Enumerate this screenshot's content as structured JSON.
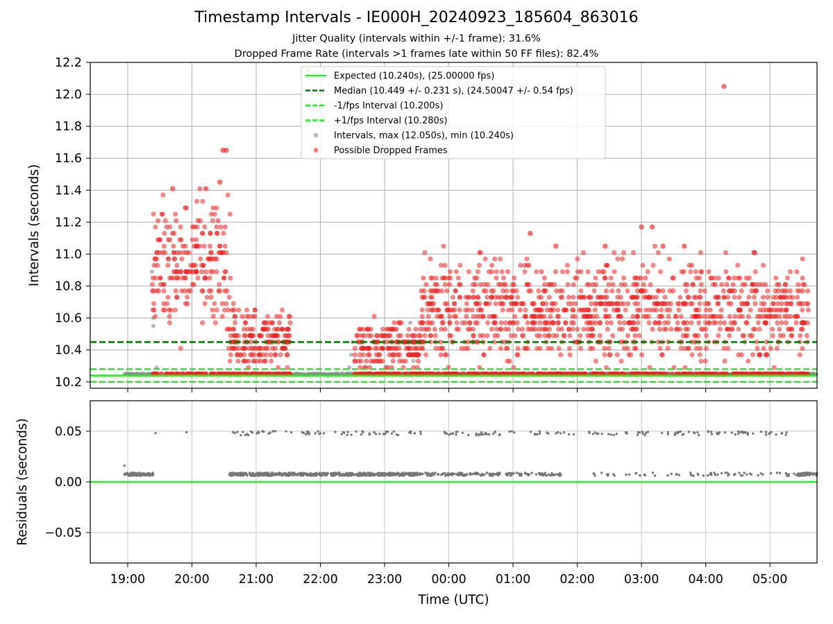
{
  "chart_data": [
    {
      "type": "scatter",
      "title": "Timestamp Intervals - IE000H_20240923_185604_863016",
      "subtitle_1": "Jitter Quality (intervals within +/-1 frame): 31.6%",
      "subtitle_2": "Dropped Frame Rate (intervals >1 frames late within 50 FF files): 82.4%",
      "ylabel": "Intervals (seconds)",
      "xlim": [
        "18:25",
        "05:44"
      ],
      "ylim": [
        10.16,
        12.2
      ],
      "yticks": [
        "10.2",
        "10.4",
        "10.6",
        "10.8",
        "11.0",
        "11.2",
        "11.4",
        "11.6",
        "11.8",
        "12.0",
        "12.2"
      ],
      "grid": true,
      "legend_position": "top-center",
      "reference_lines": [
        {
          "name": "Expected (10.240s), (25.00000 fps)",
          "y": 10.24,
          "style": "solid",
          "color": "#22ee22"
        },
        {
          "name": "Median (10.449 +/- 0.231 s), (24.50047 +/- 0.54 fps)",
          "y": 10.449,
          "style": "dashed",
          "color": "#007700"
        },
        {
          "name": "-1/fps Interval (10.200s)",
          "y": 10.2,
          "style": "dashed",
          "color": "#22ee22"
        },
        {
          "name": "+1/fps Interval (10.280s)",
          "y": 10.28,
          "style": "dashed",
          "color": "#22ee22"
        }
      ],
      "series": [
        {
          "name": "Intervals, max (12.050s), min (10.240s)",
          "color": "#888888",
          "segments": [
            {
              "start": "18:57",
              "end": "19:25",
              "base": 10.248
            },
            {
              "start": "20:34",
              "end": "21:34",
              "base": 10.248
            },
            {
              "start": "21:34",
              "end": "22:32",
              "base": 10.248
            },
            {
              "start": "22:32",
              "end": "23:35",
              "base": 10.248
            },
            {
              "start": "23:35",
              "end": "05:44",
              "base": 10.248
            }
          ]
        },
        {
          "name": "Possible Dropped Frames",
          "color": "#ff2020",
          "clusters": [
            {
              "start": "19:23",
              "end": "20:00",
              "min": 10.26,
              "max": 11.41,
              "center": 10.98
            },
            {
              "start": "20:00",
              "end": "20:36",
              "min": 10.4,
              "max": 11.45,
              "center": 10.95
            },
            {
              "start": "20:34",
              "end": "21:32",
              "min": 10.25,
              "max": 10.81,
              "center": 10.42
            },
            {
              "start": "22:32",
              "end": "23:34",
              "min": 10.25,
              "max": 10.68,
              "center": 10.4
            },
            {
              "start": "23:34",
              "end": "05:36",
              "min": 10.25,
              "max": 11.17,
              "center": 10.6
            }
          ],
          "outliers": [
            {
              "x": "20:29",
              "y": 11.65
            },
            {
              "x": "20:32",
              "y": 11.65
            },
            {
              "x": "20:26",
              "y": 11.45
            },
            {
              "x": "19:42",
              "y": 11.41
            },
            {
              "x": "20:13",
              "y": 11.41
            },
            {
              "x": "04:17",
              "y": 12.05
            },
            {
              "x": "01:16",
              "y": 11.13
            },
            {
              "x": "03:00",
              "y": 11.17
            },
            {
              "x": "03:10",
              "y": 11.17
            },
            {
              "x": "01:40",
              "y": 11.05
            },
            {
              "x": "02:26",
              "y": 11.05
            },
            {
              "x": "03:20",
              "y": 11.05
            },
            {
              "x": "03:40",
              "y": 11.05
            },
            {
              "x": "04:45",
              "y": 11.01
            }
          ]
        }
      ]
    },
    {
      "type": "scatter",
      "ylabel": "Residuals (seconds)",
      "xlabel": "Time (UTC)",
      "xlim": [
        "18:25",
        "05:44"
      ],
      "ylim": [
        -0.08,
        0.08
      ],
      "yticks": [
        "−0.05",
        "0.00",
        "0.05"
      ],
      "xticks": [
        "19:00",
        "20:00",
        "21:00",
        "22:00",
        "23:00",
        "00:00",
        "01:00",
        "02:00",
        "03:00",
        "04:00",
        "05:00"
      ],
      "grid": true,
      "reference_line": {
        "y": 0.0,
        "color": "#22ee22"
      },
      "series": [
        {
          "name": "Residuals",
          "color": "#777777",
          "bands": [
            {
              "start": "18:57",
              "end": "19:25",
              "y": 0.0075,
              "density": "dense"
            },
            {
              "start": "20:35",
              "end": "23:35",
              "y": 0.0075,
              "density": "dense"
            },
            {
              "start": "23:35",
              "end": "01:45",
              "y": 0.0075,
              "density": "medium"
            },
            {
              "start": "02:15",
              "end": "05:30",
              "y": 0.0075,
              "density": "sparse"
            },
            {
              "start": "05:25",
              "end": "05:44",
              "y": 0.0075,
              "density": "dense"
            },
            {
              "start": "20:35",
              "end": "05:20",
              "y": 0.048,
              "density": "sparse"
            }
          ],
          "outliers": [
            {
              "x": "18:57",
              "y": 0.016
            },
            {
              "x": "19:26",
              "y": 0.048
            },
            {
              "x": "19:55",
              "y": 0.049
            }
          ]
        }
      ]
    }
  ]
}
